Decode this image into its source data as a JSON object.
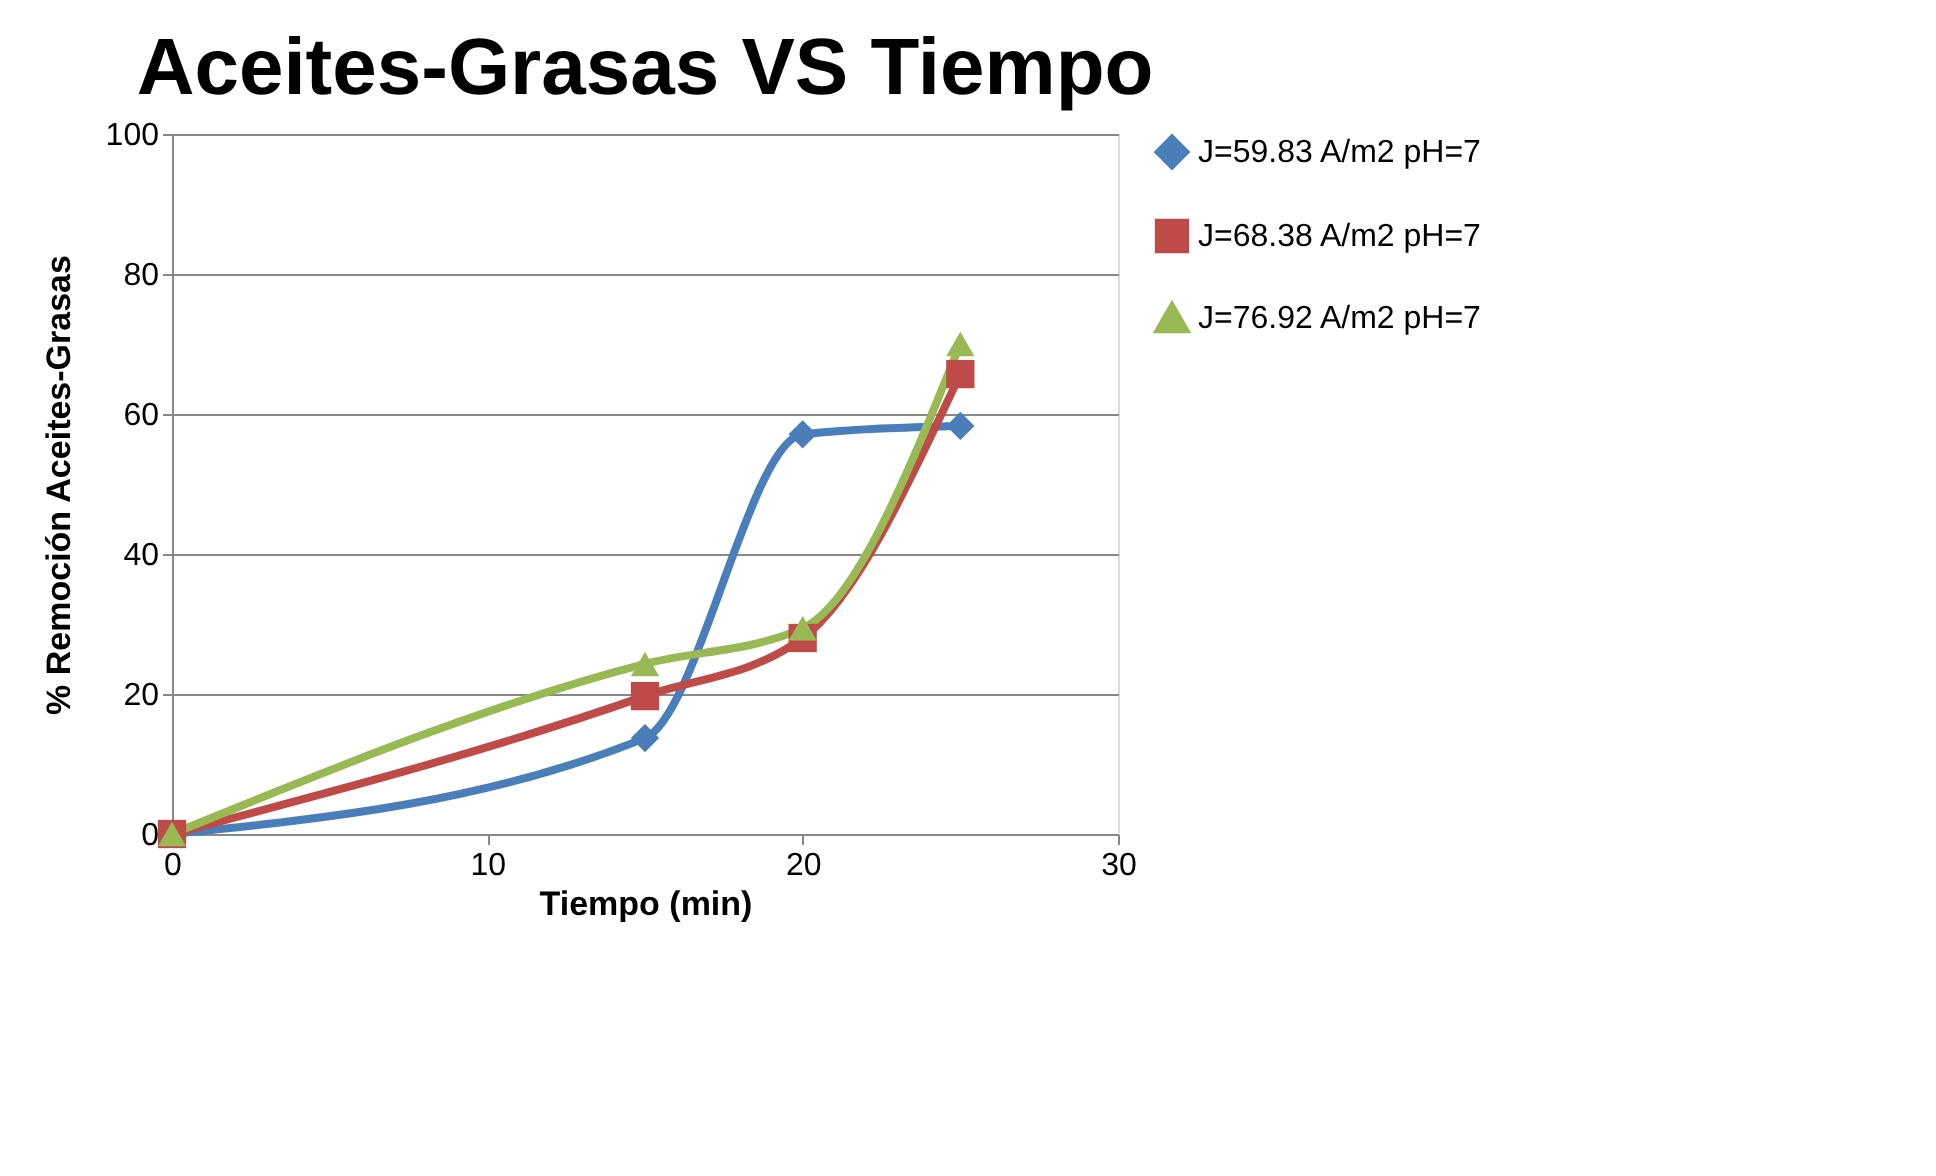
{
  "chart_data": {
    "type": "line",
    "title": "Aceites-Grasas VS Tiempo",
    "xlabel": "Tiempo (min)",
    "ylabel": "% Remoción Aceites-Grasas",
    "x": [
      0,
      15,
      20,
      25
    ],
    "series": [
      {
        "name": "J=59.83 A/m2  pH=7",
        "color": "#4a7ebb",
        "marker": "diamond",
        "values": [
          0,
          13.7,
          57.1,
          58.3
        ]
      },
      {
        "name": "J=68.38 A/m2  pH=7",
        "color": "#be4b48",
        "marker": "square",
        "values": [
          0,
          19.7,
          28,
          65.7
        ]
      },
      {
        "name": "J=76.92 A/m2  pH=7",
        "color": "#98b954",
        "marker": "triangle",
        "values": [
          0,
          24.3,
          29.4,
          70
        ]
      }
    ],
    "xlim": [
      0,
      30
    ],
    "xticks": [
      0,
      10,
      20,
      30
    ],
    "ylim": [
      0,
      100
    ],
    "yticks": [
      0,
      20,
      40,
      60,
      80,
      100
    ],
    "grid": "y",
    "legend": "right",
    "line_style": "solid"
  }
}
